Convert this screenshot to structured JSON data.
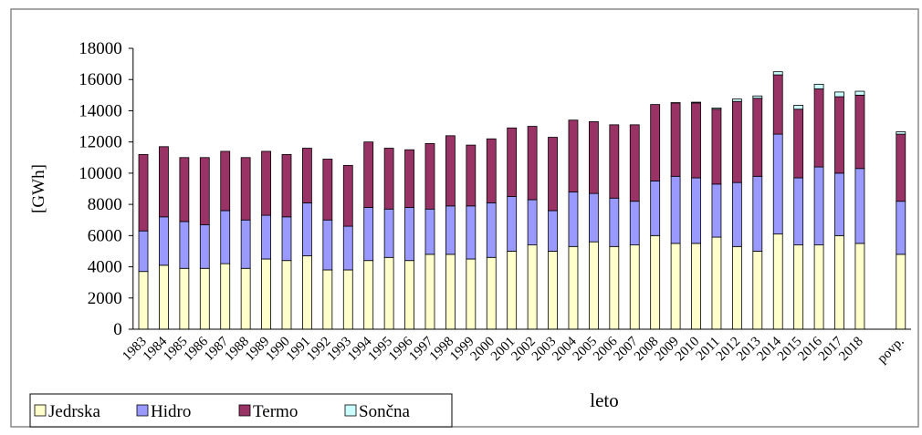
{
  "chart_data": {
    "type": "stacked_bar",
    "y_label": "[GWh]",
    "x_label": "leto",
    "categories": [
      "1983",
      "1984",
      "1985",
      "1986",
      "1987",
      "1988",
      "1989",
      "1990",
      "1991",
      "1992",
      "1993",
      "1994",
      "1995",
      "1996",
      "1997",
      "1998",
      "1999",
      "2000",
      "2001",
      "2002",
      "2003",
      "2004",
      "2005",
      "2006",
      "2007",
      "2008",
      "2009",
      "2010",
      "2011",
      "2012",
      "2013",
      "2014",
      "2015",
      "2016",
      "2017",
      "2018",
      null,
      "povp."
    ],
    "series": [
      {
        "name": "Jedrska",
        "color": "#ffffcc",
        "values": [
          3700,
          4100,
          3900,
          3900,
          4200,
          3900,
          4500,
          4400,
          4700,
          3800,
          3800,
          4400,
          4600,
          4400,
          4800,
          4800,
          4500,
          4600,
          5000,
          5400,
          5000,
          5300,
          5600,
          5300,
          5400,
          6000,
          5500,
          5500,
          5900,
          5300,
          5000,
          6100,
          5400,
          5400,
          6000,
          5500,
          null,
          4800
        ]
      },
      {
        "name": "Hidro",
        "color": "#9999ff",
        "values": [
          2600,
          3100,
          3000,
          2800,
          3400,
          3100,
          2800,
          2800,
          3400,
          3200,
          2800,
          3400,
          3100,
          3400,
          2900,
          3100,
          3400,
          3500,
          3500,
          2900,
          2600,
          3500,
          3100,
          3100,
          2800,
          3500,
          4300,
          4200,
          3400,
          4100,
          4800,
          6400,
          4300,
          5000,
          4000,
          4800,
          null,
          3400
        ]
      },
      {
        "name": "Termo",
        "color": "#993366",
        "values": [
          4900,
          4500,
          4100,
          4300,
          3800,
          4000,
          4100,
          4000,
          3500,
          3900,
          3900,
          4200,
          3900,
          3700,
          4200,
          4500,
          3900,
          4100,
          4400,
          4700,
          4700,
          4600,
          4600,
          4700,
          4900,
          4900,
          4700,
          4800,
          4800,
          5200,
          5000,
          3800,
          4400,
          5000,
          4900,
          4700,
          null,
          4300
        ]
      },
      {
        "name": "Sončna",
        "color": "#ccffff",
        "values": [
          0,
          0,
          0,
          0,
          0,
          0,
          0,
          0,
          0,
          0,
          0,
          0,
          0,
          0,
          0,
          0,
          0,
          0,
          0,
          0,
          0,
          0,
          0,
          0,
          0,
          0,
          20,
          50,
          80,
          150,
          150,
          200,
          250,
          300,
          300,
          250,
          null,
          150
        ]
      }
    ],
    "ylim": [
      0,
      18000
    ],
    "yticks": [
      0,
      2000,
      4000,
      6000,
      8000,
      10000,
      12000,
      14000,
      16000,
      18000
    ]
  }
}
